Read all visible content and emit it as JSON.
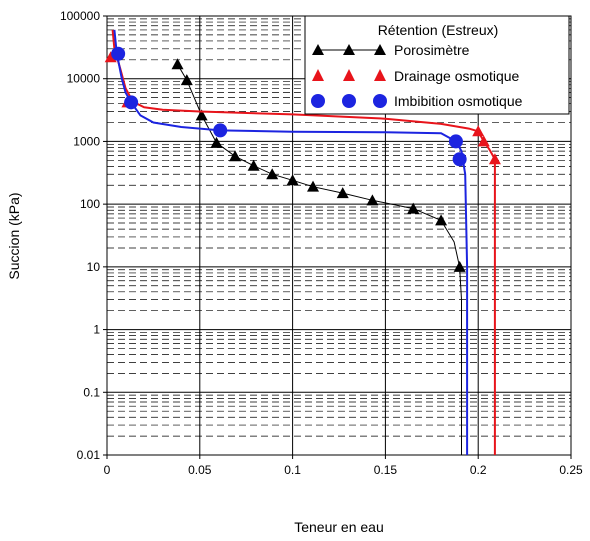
{
  "chart_data": {
    "type": "scatter",
    "xlabel": "Teneur en eau",
    "ylabel": "Succion (kPa)",
    "xscale": "linear",
    "yscale": "log",
    "xlim": [
      0,
      0.25
    ],
    "ylim": [
      0.01,
      100000
    ],
    "x_ticks": [
      "0",
      "0.05",
      "0.1",
      "0.15",
      "0.2",
      "0.25"
    ],
    "y_ticks": [
      "0.01",
      "0.1",
      "1",
      "10",
      "100",
      "1000",
      "10000",
      "100000"
    ],
    "grid": true,
    "legend": {
      "title": "Rétention (Estreux)",
      "position": "top-right"
    },
    "series": [
      {
        "name": "Porosimètre",
        "color": "#000000",
        "marker": "triangle",
        "points": [
          {
            "x": 0.038,
            "y": 17000
          },
          {
            "x": 0.043,
            "y": 9500
          },
          {
            "x": 0.051,
            "y": 2600
          },
          {
            "x": 0.059,
            "y": 950
          },
          {
            "x": 0.069,
            "y": 580
          },
          {
            "x": 0.079,
            "y": 410
          },
          {
            "x": 0.089,
            "y": 300
          },
          {
            "x": 0.1,
            "y": 240
          },
          {
            "x": 0.111,
            "y": 190
          },
          {
            "x": 0.127,
            "y": 150
          },
          {
            "x": 0.143,
            "y": 115
          },
          {
            "x": 0.165,
            "y": 85
          },
          {
            "x": 0.18,
            "y": 55
          },
          {
            "x": 0.19,
            "y": 10
          }
        ],
        "curve": [
          [
            0.038,
            17000
          ],
          [
            0.043,
            9500
          ],
          [
            0.051,
            2600
          ],
          [
            0.059,
            950
          ],
          [
            0.069,
            580
          ],
          [
            0.079,
            410
          ],
          [
            0.089,
            300
          ],
          [
            0.1,
            240
          ],
          [
            0.111,
            190
          ],
          [
            0.127,
            150
          ],
          [
            0.143,
            115
          ],
          [
            0.165,
            85
          ],
          [
            0.18,
            55
          ],
          [
            0.187,
            25
          ],
          [
            0.19,
            10
          ],
          [
            0.191,
            3
          ],
          [
            0.191,
            0.01
          ]
        ]
      },
      {
        "name": "Drainage osmotique",
        "color": "#e8141b",
        "marker": "triangle",
        "points": [
          {
            "x": 0.002,
            "y": 22000
          },
          {
            "x": 0.011,
            "y": 4200
          },
          {
            "x": 0.2,
            "y": 1450
          },
          {
            "x": 0.203,
            "y": 1000
          },
          {
            "x": 0.209,
            "y": 520
          }
        ],
        "curve": [
          [
            0.003,
            60000
          ],
          [
            0.004,
            30000
          ],
          [
            0.007,
            15000
          ],
          [
            0.01,
            7000
          ],
          [
            0.014,
            4300
          ],
          [
            0.02,
            3500
          ],
          [
            0.03,
            3200
          ],
          [
            0.05,
            3000
          ],
          [
            0.1,
            2700
          ],
          [
            0.15,
            2300
          ],
          [
            0.18,
            1900
          ],
          [
            0.195,
            1600
          ],
          [
            0.2,
            1450
          ],
          [
            0.203,
            1000
          ],
          [
            0.206,
            750
          ],
          [
            0.209,
            520
          ],
          [
            0.209,
            100
          ],
          [
            0.209,
            0.01
          ]
        ]
      },
      {
        "name": "Imbibition osmotique",
        "color": "#1c24e0",
        "marker": "circle",
        "points": [
          {
            "x": 0.006,
            "y": 25000
          },
          {
            "x": 0.013,
            "y": 4200
          },
          {
            "x": 0.061,
            "y": 1500
          },
          {
            "x": 0.188,
            "y": 1000
          },
          {
            "x": 0.19,
            "y": 520
          }
        ],
        "curve": [
          [
            0.004,
            60000
          ],
          [
            0.005,
            30000
          ],
          [
            0.006,
            20000
          ],
          [
            0.008,
            10000
          ],
          [
            0.01,
            6000
          ],
          [
            0.013,
            4200
          ],
          [
            0.018,
            2600
          ],
          [
            0.025,
            2000
          ],
          [
            0.04,
            1700
          ],
          [
            0.061,
            1500
          ],
          [
            0.1,
            1430
          ],
          [
            0.15,
            1400
          ],
          [
            0.18,
            1350
          ],
          [
            0.188,
            1000
          ],
          [
            0.191,
            700
          ],
          [
            0.193,
            300
          ],
          [
            0.194,
            10
          ],
          [
            0.194,
            0.01
          ]
        ]
      }
    ]
  }
}
